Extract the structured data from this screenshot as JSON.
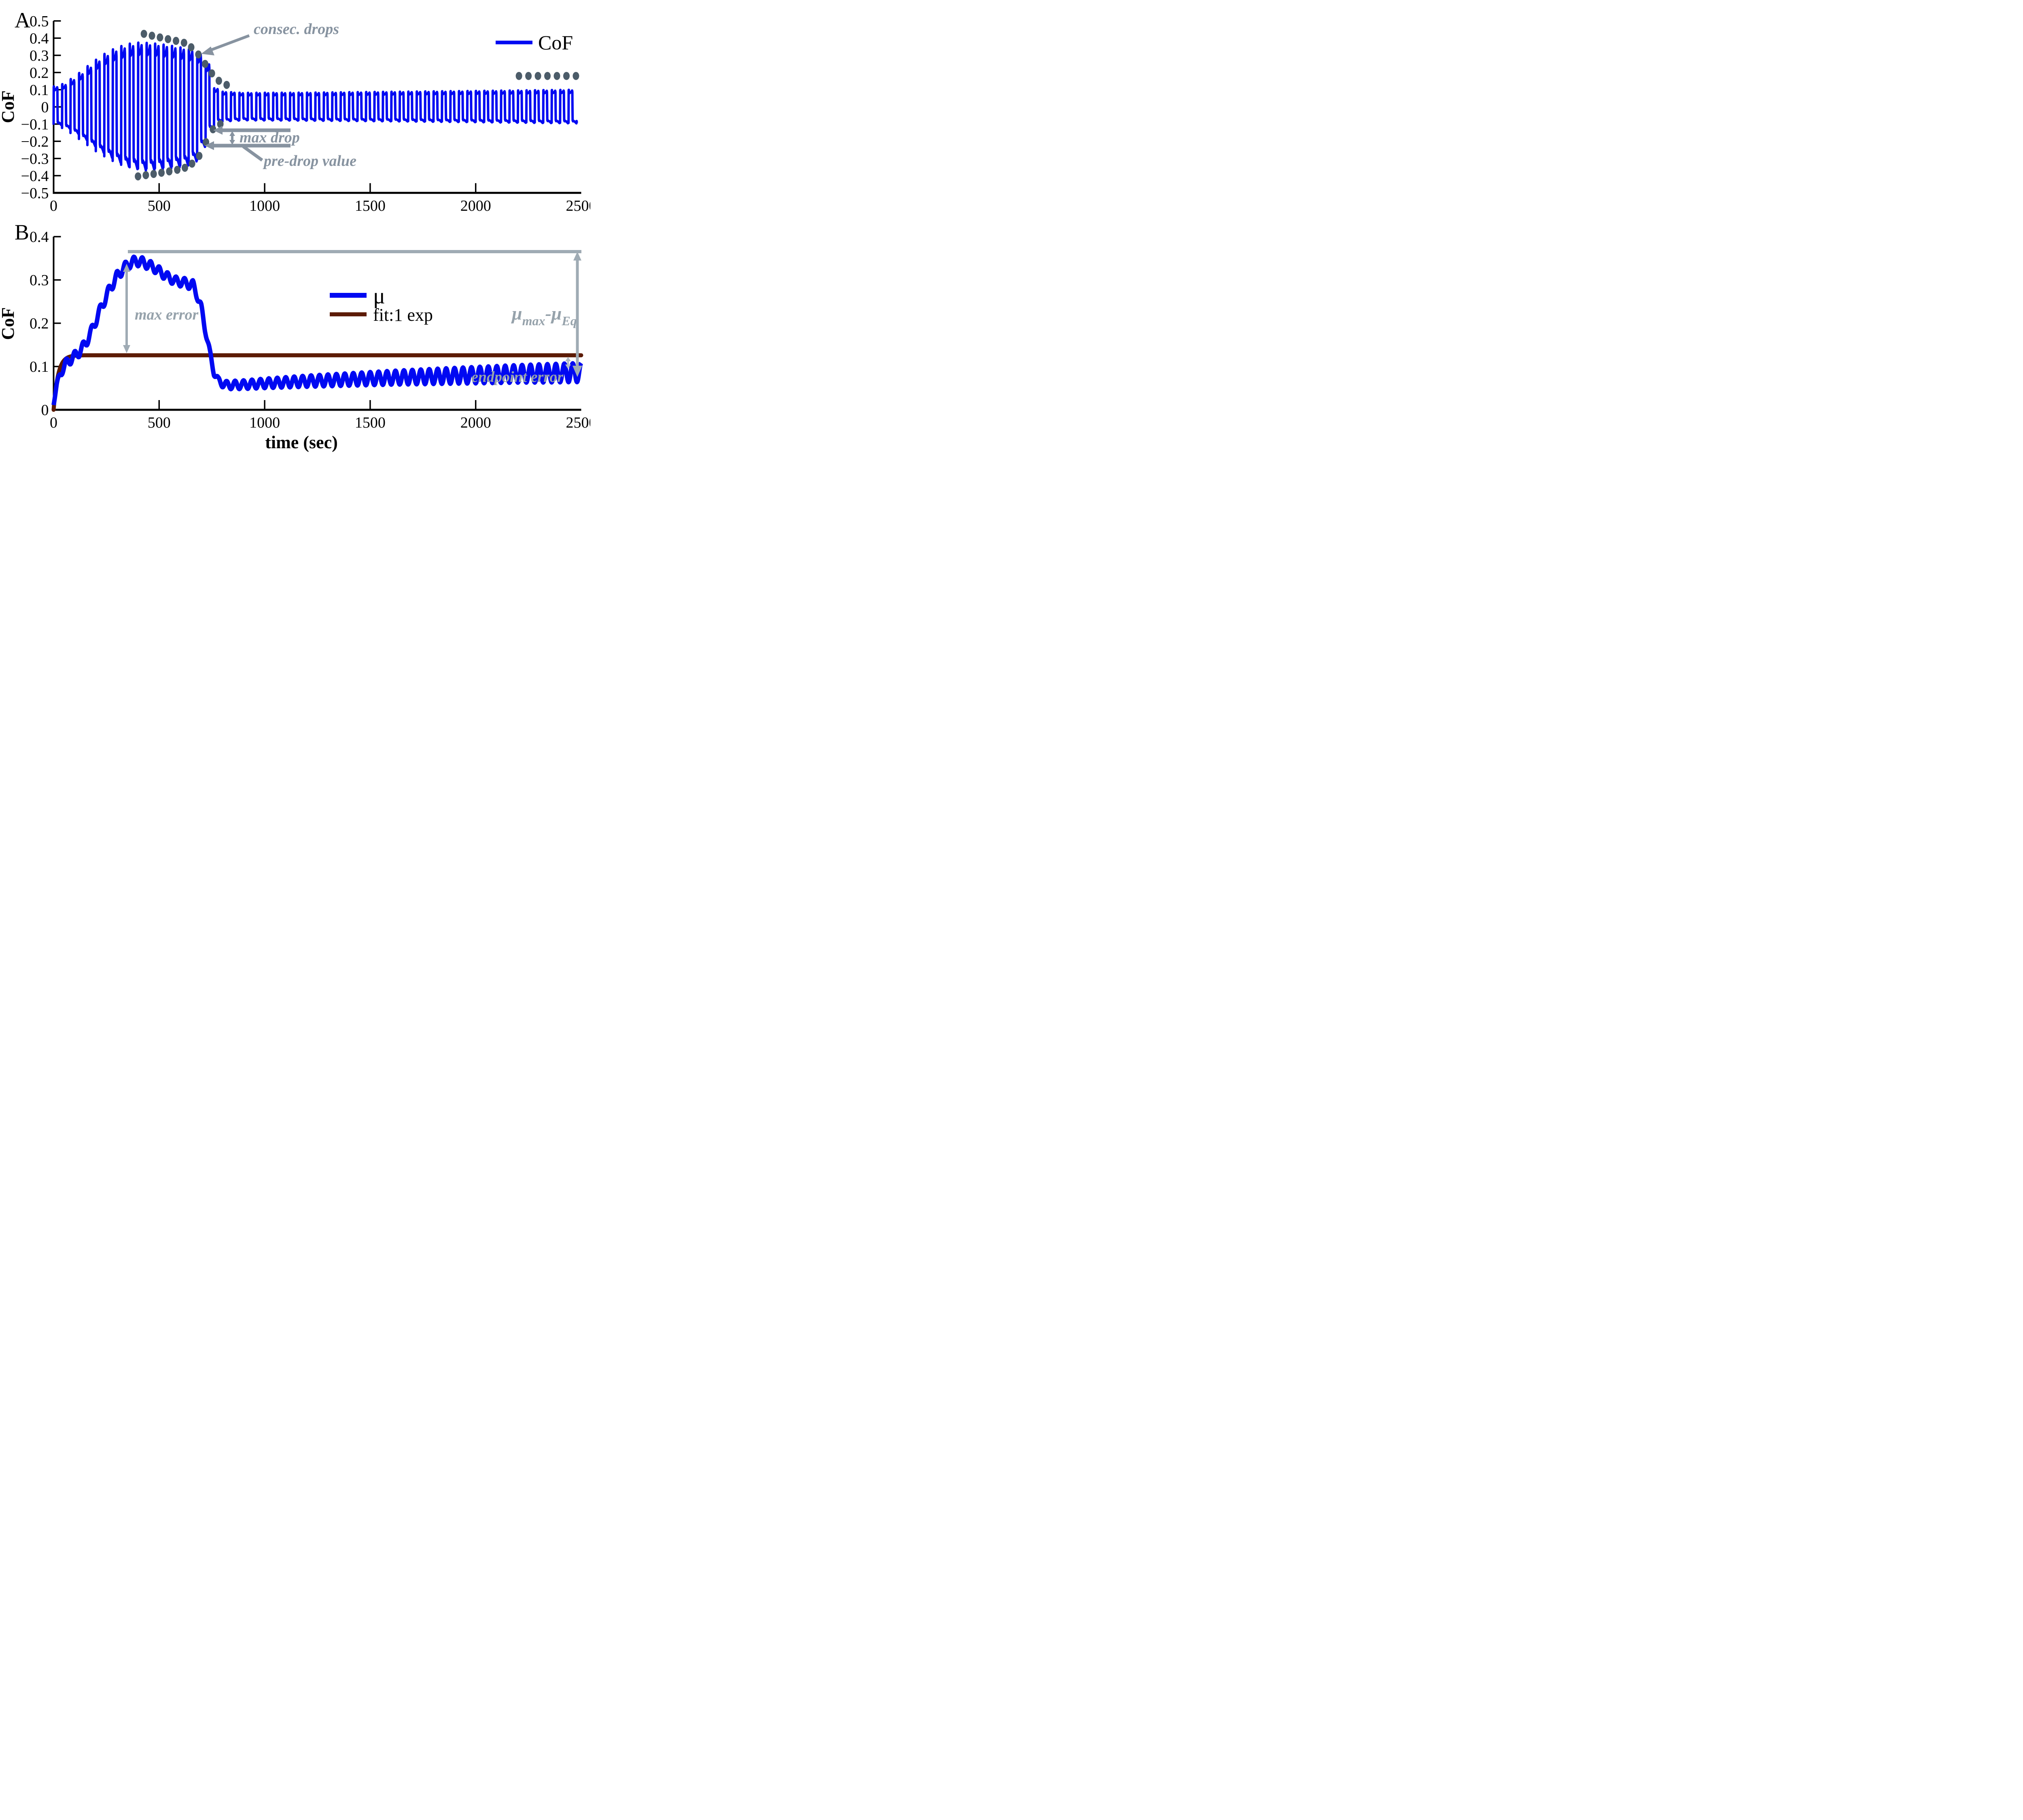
{
  "figure": {
    "background": "#ffffff"
  },
  "colors": {
    "cof_blue": "#0009F2",
    "fit_brown": "#5C1B04",
    "annotation_gray_a": "#8793A0",
    "annotation_gray_b": "#9FABB4",
    "dot_slate": "#4C5C69",
    "axis_black": "#000000"
  },
  "panelA": {
    "label": "A",
    "ylabel": "CoF",
    "ytick_labels": [
      "0.5",
      "0.4",
      "0.3",
      "0.2",
      "0.1",
      "0",
      "−0.1",
      "−0.2",
      "−0.3",
      "−0.4",
      "−0.5"
    ],
    "xtick_labels": [
      "0",
      "500",
      "1000",
      "1500",
      "2000",
      "2500"
    ],
    "legend": {
      "label": "CoF"
    },
    "annotations": {
      "consec_drops": "consec. drops",
      "max_drop": "max drop",
      "pre_drop": "pre-drop value"
    }
  },
  "panelB": {
    "label": "B",
    "ylabel": "CoF",
    "xlabel": "time (sec)",
    "ytick_labels": [
      "0",
      "0.1",
      "0.2",
      "0.3",
      "0.4"
    ],
    "xtick_labels": [
      "0",
      "500",
      "1000",
      "1500",
      "2000",
      "2500"
    ],
    "legend": {
      "mu": "μ",
      "fit": "fit:1 exp"
    },
    "annotations": {
      "max_error": "max error",
      "endpoint_error": "endpoint error",
      "mu_max_main": "μ",
      "mu_max_sub": "max",
      "mu_minus_main": "-μ",
      "mu_eq_sub": "Eq"
    }
  },
  "chart_data": [
    {
      "id": "A",
      "type": "line",
      "ylabel": "CoF",
      "xlim": [
        0,
        2500
      ],
      "ylim": [
        -0.5,
        0.5
      ],
      "xticks": [
        0,
        500,
        1000,
        1500,
        2000,
        2500
      ],
      "yticks": [
        0.5,
        0.4,
        0.3,
        0.2,
        0.1,
        0,
        -0.1,
        -0.2,
        -0.3,
        -0.4,
        -0.5
      ],
      "grid": false,
      "legend_position": "top-right",
      "series": {
        "name": "CoF",
        "waveform": "square-like oscillation",
        "period_sec": 40,
        "envelope_upper": [
          [
            0,
            0.115
          ],
          [
            60,
            0.135
          ],
          [
            120,
            0.185
          ],
          [
            180,
            0.245
          ],
          [
            240,
            0.3
          ],
          [
            300,
            0.34
          ],
          [
            360,
            0.366
          ],
          [
            420,
            0.375
          ],
          [
            480,
            0.37
          ],
          [
            540,
            0.361
          ],
          [
            600,
            0.349
          ],
          [
            650,
            0.336
          ],
          [
            690,
            0.32
          ],
          [
            710,
            0.305
          ],
          [
            728,
            0.27
          ],
          [
            742,
            0.225
          ],
          [
            755,
            0.165
          ],
          [
            768,
            0.112
          ],
          [
            790,
            0.09
          ],
          [
            900,
            0.082
          ],
          [
            1200,
            0.083
          ],
          [
            1600,
            0.088
          ],
          [
            2000,
            0.093
          ],
          [
            2500,
            0.1
          ]
        ],
        "envelope_lower": [
          [
            0,
            -0.095
          ],
          [
            60,
            -0.115
          ],
          [
            120,
            -0.16
          ],
          [
            180,
            -0.215
          ],
          [
            240,
            -0.27
          ],
          [
            300,
            -0.315
          ],
          [
            360,
            -0.35
          ],
          [
            420,
            -0.37
          ],
          [
            480,
            -0.368
          ],
          [
            540,
            -0.36
          ],
          [
            600,
            -0.349
          ],
          [
            650,
            -0.337
          ],
          [
            690,
            -0.305
          ],
          [
            705,
            -0.26
          ],
          [
            718,
            -0.225
          ],
          [
            735,
            -0.18
          ],
          [
            752,
            -0.14
          ],
          [
            768,
            -0.1
          ],
          [
            800,
            -0.085
          ],
          [
            900,
            -0.078
          ],
          [
            1200,
            -0.08
          ],
          [
            1600,
            -0.084
          ],
          [
            2000,
            -0.089
          ],
          [
            2500,
            -0.096
          ]
        ]
      },
      "markers": {
        "consec_drops_upper": [
          [
            428,
            0.425
          ],
          [
            466,
            0.414
          ],
          [
            504,
            0.404
          ],
          [
            542,
            0.394
          ],
          [
            580,
            0.384
          ],
          [
            618,
            0.373
          ],
          [
            652,
            0.347
          ],
          [
            686,
            0.305
          ],
          [
            718,
            0.25
          ],
          [
            750,
            0.195
          ],
          [
            783,
            0.152
          ],
          [
            820,
            0.128
          ]
        ],
        "consec_drops_lower": [
          [
            400,
            -0.404
          ],
          [
            437,
            -0.397
          ],
          [
            474,
            -0.39
          ],
          [
            511,
            -0.383
          ],
          [
            548,
            -0.375
          ],
          [
            586,
            -0.366
          ],
          [
            622,
            -0.354
          ],
          [
            656,
            -0.33
          ],
          [
            690,
            -0.285
          ],
          [
            722,
            -0.205
          ],
          [
            755,
            -0.13
          ],
          [
            790,
            -0.1
          ]
        ],
        "steady_row": [
          [
            2205,
            0.18
          ],
          [
            2250,
            0.18
          ],
          [
            2295,
            0.18
          ],
          [
            2340,
            0.18
          ],
          [
            2385,
            0.18
          ],
          [
            2430,
            0.18
          ],
          [
            2475,
            0.18
          ]
        ]
      },
      "annotation_targets": {
        "max_drop_arrow_value": -0.135,
        "pre_drop_arrow_value": -0.225
      }
    },
    {
      "id": "B",
      "type": "line",
      "xlabel": "time (sec)",
      "ylabel": "CoF",
      "xlim": [
        0,
        2500
      ],
      "ylim": [
        0,
        0.4
      ],
      "xticks": [
        0,
        500,
        1000,
        1500,
        2000,
        2500
      ],
      "yticks": [
        0,
        0.1,
        0.2,
        0.3,
        0.4
      ],
      "grid": false,
      "series": [
        {
          "name": "μ",
          "mean_breakpoints": [
            [
              0,
              0.018
            ],
            [
              15,
              0.055
            ],
            [
              30,
              0.082
            ],
            [
              60,
              0.108
            ],
            [
              90,
              0.12
            ],
            [
              120,
              0.133
            ],
            [
              150,
              0.152
            ],
            [
              180,
              0.182
            ],
            [
              210,
              0.218
            ],
            [
              240,
              0.252
            ],
            [
              270,
              0.283
            ],
            [
              300,
              0.308
            ],
            [
              330,
              0.326
            ],
            [
              360,
              0.338
            ],
            [
              390,
              0.344
            ],
            [
              420,
              0.341
            ],
            [
              450,
              0.335
            ],
            [
              480,
              0.327
            ],
            [
              510,
              0.317
            ],
            [
              540,
              0.307
            ],
            [
              570,
              0.299
            ],
            [
              600,
              0.295
            ],
            [
              630,
              0.293
            ],
            [
              660,
              0.287
            ],
            [
              680,
              0.268
            ],
            [
              700,
              0.232
            ],
            [
              720,
              0.185
            ],
            [
              740,
              0.13
            ],
            [
              760,
              0.088
            ],
            [
              780,
              0.066
            ],
            [
              820,
              0.057
            ],
            [
              900,
              0.058
            ],
            [
              1000,
              0.061
            ],
            [
              1200,
              0.066
            ],
            [
              1400,
              0.07
            ],
            [
              1600,
              0.074
            ],
            [
              1800,
              0.077
            ],
            [
              2000,
              0.08
            ],
            [
              2200,
              0.083
            ],
            [
              2400,
              0.085
            ],
            [
              2500,
              0.086
            ]
          ],
          "wiggle_amplitude_breakpoints": [
            [
              0,
              0.007
            ],
            [
              80,
              0.011
            ],
            [
              300,
              0.012
            ],
            [
              600,
              0.01
            ],
            [
              680,
              0.013
            ],
            [
              760,
              0.009
            ],
            [
              900,
              0.01
            ],
            [
              1200,
              0.013
            ],
            [
              1600,
              0.016
            ],
            [
              2000,
              0.019
            ],
            [
              2300,
              0.021
            ],
            [
              2500,
              0.022
            ]
          ],
          "wiggle_period_sec": 40
        },
        {
          "name": "fit:1 exp",
          "model": "mu_eq*(1-exp(-t/tau))",
          "mu_eq": 0.126,
          "tau_sec": 21
        }
      ],
      "reference_line": {
        "value": 0.365,
        "x_range": [
          350,
          2500
        ]
      },
      "key_values": {
        "mu_max": 0.35,
        "mu_eq_fit": 0.126,
        "max_error_span": [
          0.135,
          0.325
        ],
        "endpoint_error_span": [
          0.105,
          0.126
        ],
        "mu_max_minus_mu_eq_span": [
          0.095,
          0.365
        ]
      }
    }
  ]
}
